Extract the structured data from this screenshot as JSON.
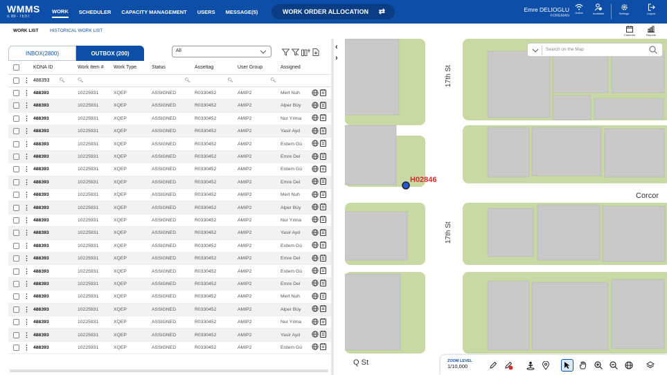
{
  "app": {
    "name": "WMMS",
    "version": "v. 89 - TEST"
  },
  "nav": {
    "items": [
      "WORK",
      "SCHEDULER",
      "CAPACITY MANAGEMENT",
      "USERS",
      "MESSAGE(5)"
    ],
    "active": "WORK"
  },
  "center_title": "WORK ORDER ALLOCATION",
  "user": {
    "name": "Emre DELIOGLU",
    "role": "FOREMAN"
  },
  "toolbar_icons": [
    {
      "label": "Online",
      "icon": "wifi-icon"
    },
    {
      "label": "Available",
      "icon": "availability-icon"
    },
    {
      "label": "Settings",
      "icon": "gear-icon"
    },
    {
      "label": "Logout",
      "icon": "logout-icon"
    }
  ],
  "subnav": {
    "work_list": "WORK LIST",
    "historical": "HISTORICAL WORK LIST",
    "calendar": "Calendar",
    "reports": "Reports"
  },
  "tabs": {
    "inbox": "INBOX(2800)",
    "outbox": "OUTBOX (200)"
  },
  "select": {
    "value": "All"
  },
  "grid": {
    "columns": [
      "KONA ID",
      "Work Item #",
      "Work Type",
      "Status",
      "Assettag",
      "User Group",
      "Assigned"
    ],
    "filter": {
      "kona_id": "488393"
    },
    "rows": [
      {
        "kona_id": "488393",
        "work_item": "10225931",
        "work_type": "XQEP",
        "status": "ASSIGNED",
        "assettag": "R0330452",
        "user_group": "AMIP2",
        "assigned": "Mert Nuh"
      },
      {
        "kona_id": "488393",
        "work_item": "10225931",
        "work_type": "XQEP",
        "status": "ASSIGNED",
        "assettag": "R0330452",
        "user_group": "AMIP2",
        "assigned": "Alper Büy"
      },
      {
        "kona_id": "488393",
        "work_item": "10225931",
        "work_type": "XQEP",
        "status": "ASSIGNED",
        "assettag": "R0330452",
        "user_group": "AMIP2",
        "assigned": "Nur Yılma"
      },
      {
        "kona_id": "488393",
        "work_item": "10225931",
        "work_type": "XQEP",
        "status": "ASSIGNED",
        "assettag": "R0330452",
        "user_group": "AMIP2",
        "assigned": "Yasir Ayd"
      },
      {
        "kona_id": "488393",
        "work_item": "10225931",
        "work_type": "XQEP",
        "status": "ASSIGNED",
        "assettag": "R0330452",
        "user_group": "AMIP2",
        "assigned": "Erdem Gü"
      },
      {
        "kona_id": "488393",
        "work_item": "10225931",
        "work_type": "XQEP",
        "status": "ASSIGNED",
        "assettag": "R0330452",
        "user_group": "AMIP2",
        "assigned": "Emre Del"
      },
      {
        "kona_id": "488393",
        "work_item": "10225931",
        "work_type": "XQEP",
        "status": "ASSIGNED",
        "assettag": "R0330452",
        "user_group": "AMIP2",
        "assigned": "Erdem Gü"
      },
      {
        "kona_id": "488393",
        "work_item": "10225931",
        "work_type": "XQEP",
        "status": "ASSIGNED",
        "assettag": "R0330452",
        "user_group": "AMIP2",
        "assigned": "Emre Del"
      },
      {
        "kona_id": "488393",
        "work_item": "10225931",
        "work_type": "XQEP",
        "status": "ASSIGNED",
        "assettag": "R0330452",
        "user_group": "AMIP2",
        "assigned": "Mert Nuh"
      },
      {
        "kona_id": "488393",
        "work_item": "10225931",
        "work_type": "XQEP",
        "status": "ASSIGNED",
        "assettag": "R0330452",
        "user_group": "AMIP2",
        "assigned": "Alper Büy"
      },
      {
        "kona_id": "488393",
        "work_item": "10225931",
        "work_type": "XQEP",
        "status": "ASSIGNED",
        "assettag": "R0330452",
        "user_group": "AMIP2",
        "assigned": "Nur Yılma"
      },
      {
        "kona_id": "488393",
        "work_item": "10225931",
        "work_type": "XQEP",
        "status": "ASSIGNED",
        "assettag": "R0330452",
        "user_group": "AMIP2",
        "assigned": "Yasir Ayd"
      },
      {
        "kona_id": "488393",
        "work_item": "10225931",
        "work_type": "XQEP",
        "status": "ASSIGNED",
        "assettag": "R0330452",
        "user_group": "AMIP2",
        "assigned": "Erdem Gü"
      },
      {
        "kona_id": "488393",
        "work_item": "10225931",
        "work_type": "XQEP",
        "status": "ASSIGNED",
        "assettag": "R0330452",
        "user_group": "AMIP2",
        "assigned": "Emre Del"
      },
      {
        "kona_id": "488393",
        "work_item": "10225931",
        "work_type": "XQEP",
        "status": "ASSIGNED",
        "assettag": "R0330452",
        "user_group": "AMIP2",
        "assigned": "Erdem Gü"
      },
      {
        "kona_id": "488393",
        "work_item": "10225931",
        "work_type": "XQEP",
        "status": "ASSIGNED",
        "assettag": "R0330452",
        "user_group": "AMIP2",
        "assigned": "Emre Del"
      },
      {
        "kona_id": "488393",
        "work_item": "10225931",
        "work_type": "XQEP",
        "status": "ASSIGNED",
        "assettag": "R0330452",
        "user_group": "AMIP2",
        "assigned": "Mert Nuh"
      },
      {
        "kona_id": "488393",
        "work_item": "10225931",
        "work_type": "XQEP",
        "status": "ASSIGNED",
        "assettag": "R0330452",
        "user_group": "AMIP2",
        "assigned": "Alper Büy"
      },
      {
        "kona_id": "488393",
        "work_item": "10225931",
        "work_type": "XQEP",
        "status": "ASSIGNED",
        "assettag": "R0330452",
        "user_group": "AMIP2",
        "assigned": "Nur Yılma"
      },
      {
        "kona_id": "488393",
        "work_item": "10225931",
        "work_type": "XQEP",
        "status": "ASSIGNED",
        "assettag": "R0330452",
        "user_group": "AMIP2",
        "assigned": "Yasir Ayd"
      },
      {
        "kona_id": "488393",
        "work_item": "10225931",
        "work_type": "XQEP",
        "status": "ASSIGNED",
        "assettag": "R0330452",
        "user_group": "AMIP2",
        "assigned": "Erdem Gü"
      }
    ]
  },
  "map": {
    "search_placeholder": "Search on the Map",
    "marker_label": "H02846",
    "street_labels": [
      "17th St",
      "17th St",
      "Corcor",
      "Q St"
    ],
    "zoom_label": "ZOOM LEVEL",
    "zoom_value": "1/10,000",
    "colors": {
      "park": "#c8d9a3",
      "building": "#c9c9c9",
      "road": "#ffffff",
      "marker_label": "#d22b2b",
      "accent": "#0d4fa8"
    }
  }
}
